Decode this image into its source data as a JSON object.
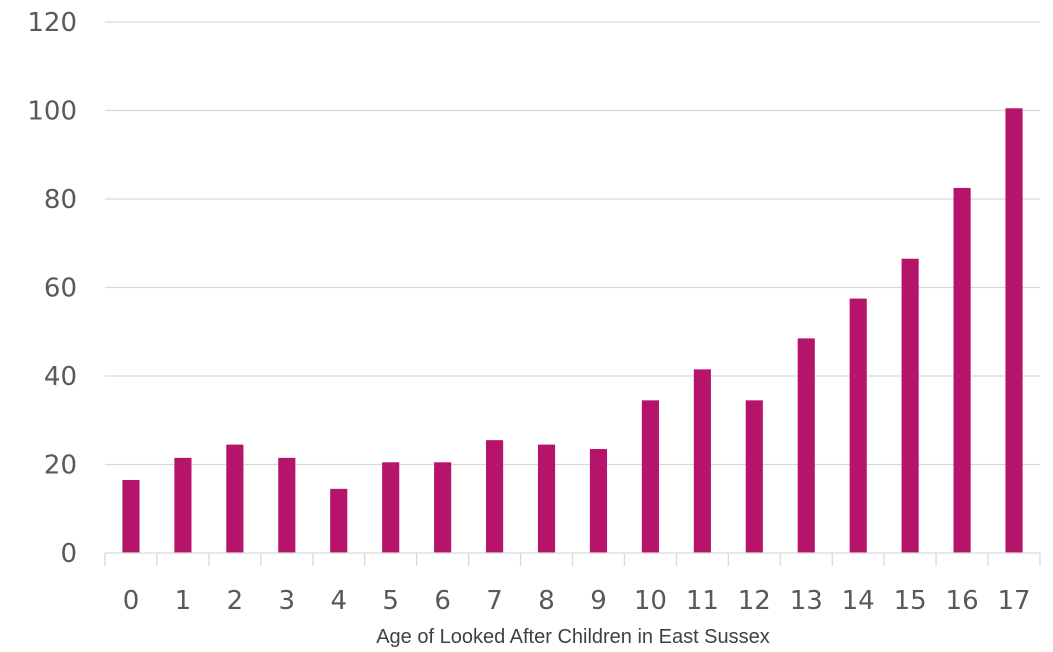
{
  "chart_data": {
    "type": "bar",
    "title": "",
    "xlabel": "Age of  Looked After Children in East Sussex",
    "ylabel": "",
    "categories": [
      "0",
      "1",
      "2",
      "3",
      "4",
      "5",
      "6",
      "7",
      "8",
      "9",
      "10",
      "11",
      "12",
      "13",
      "14",
      "15",
      "16",
      "17"
    ],
    "values": [
      16.5,
      21.5,
      24.5,
      21.5,
      14.5,
      20.5,
      20.5,
      25.5,
      24.5,
      23.5,
      34.5,
      41.5,
      34.5,
      48.5,
      57.5,
      66.5,
      82.5,
      100.5
    ],
    "ylim": [
      0,
      120
    ],
    "yticks": [
      "0",
      "20",
      "40",
      "60",
      "80",
      "100",
      "120"
    ],
    "grid": true,
    "legend": "none",
    "bar_color": "#B5146A",
    "grid_color": "#D9D9D9"
  }
}
